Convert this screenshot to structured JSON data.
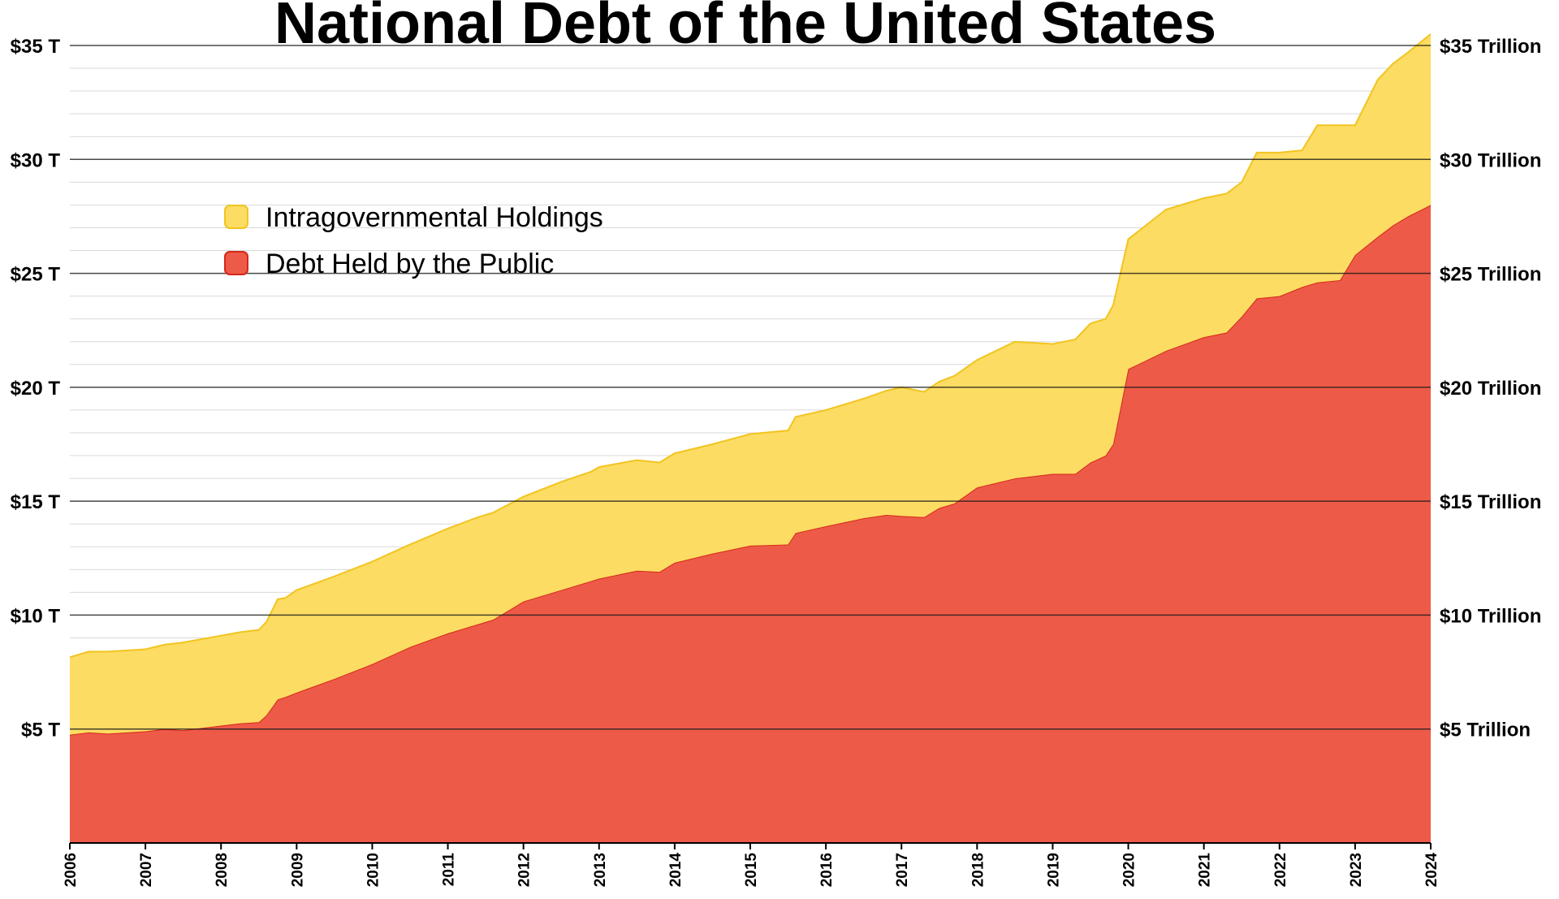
{
  "chart_data": {
    "type": "area",
    "stacked": true,
    "title": "National Debt of the United States",
    "xlabel": "",
    "ylabel": "",
    "xlim": [
      2006,
      2024
    ],
    "ylim": [
      0,
      35
    ],
    "unit": "trillion USD",
    "x_ticks": [
      "2006",
      "2007",
      "2008",
      "2009",
      "2010",
      "2011",
      "2012",
      "2013",
      "2014",
      "2015",
      "2016",
      "2017",
      "2018",
      "2019",
      "2020",
      "2021",
      "2022",
      "2023",
      "2024"
    ],
    "y_ticks_left": [
      {
        "value": 5,
        "label": "$5 T"
      },
      {
        "value": 10,
        "label": "$10 T"
      },
      {
        "value": 15,
        "label": "$15 T"
      },
      {
        "value": 20,
        "label": "$20 T"
      },
      {
        "value": 25,
        "label": "$25 T"
      },
      {
        "value": 30,
        "label": "$30 T"
      },
      {
        "value": 35,
        "label": "$35 T"
      }
    ],
    "y_ticks_right": [
      {
        "value": 5,
        "label": "$5 Trillion"
      },
      {
        "value": 10,
        "label": "$10 Trillion"
      },
      {
        "value": 15,
        "label": "$15 Trillion"
      },
      {
        "value": 20,
        "label": "$20 Trillion"
      },
      {
        "value": 25,
        "label": "$25 Trillion"
      },
      {
        "value": 30,
        "label": "$30 Trillion"
      },
      {
        "value": 35,
        "label": "$35 Trillion"
      }
    ],
    "minor_grid_step": 1,
    "grid": true,
    "legend_position": "top-left",
    "x": [
      2006.0,
      2006.25,
      2006.5,
      2007.0,
      2007.25,
      2007.5,
      2008.0,
      2008.25,
      2008.5,
      2008.6,
      2008.75,
      2008.85,
      2009.0,
      2009.5,
      2010.0,
      2010.5,
      2011.0,
      2011.4,
      2011.6,
      2012.0,
      2012.5,
      2012.9,
      2013.0,
      2013.5,
      2013.8,
      2014.0,
      2014.5,
      2015.0,
      2015.5,
      2015.6,
      2016.0,
      2016.5,
      2016.8,
      2017.0,
      2017.3,
      2017.5,
      2017.7,
      2018.0,
      2018.5,
      2019.0,
      2019.3,
      2019.5,
      2019.7,
      2019.8,
      2020.0,
      2020.5,
      2021.0,
      2021.3,
      2021.5,
      2021.7,
      2022.0,
      2022.3,
      2022.5,
      2022.8,
      2023.0,
      2023.3,
      2023.5,
      2023.7,
      2024.0
    ],
    "series": [
      {
        "name": "Debt Held by the Public",
        "color": "#ee5a48",
        "line_color": "#d4281a",
        "values": [
          4.75,
          4.85,
          4.8,
          4.9,
          5.0,
          4.95,
          5.15,
          5.25,
          5.3,
          5.6,
          6.3,
          6.4,
          6.6,
          7.2,
          7.85,
          8.6,
          9.2,
          9.6,
          9.8,
          10.6,
          11.1,
          11.5,
          11.6,
          11.95,
          11.9,
          12.3,
          12.7,
          13.05,
          13.1,
          13.6,
          13.9,
          14.25,
          14.4,
          14.35,
          14.3,
          14.7,
          14.9,
          15.6,
          16.0,
          16.2,
          16.2,
          16.7,
          17.0,
          17.5,
          20.8,
          21.6,
          22.2,
          22.4,
          23.1,
          23.9,
          24.0,
          24.4,
          24.6,
          24.7,
          25.8,
          26.6,
          27.1,
          27.5,
          28.0
        ]
      },
      {
        "name": "Intragovernmental Holdings",
        "color": "#fcdc62",
        "line_color": "#f2c420",
        "values": [
          3.4,
          3.55,
          3.6,
          3.6,
          3.7,
          3.85,
          3.95,
          4.0,
          4.05,
          4.1,
          4.4,
          4.35,
          4.5,
          4.5,
          4.5,
          4.5,
          4.6,
          4.7,
          4.7,
          4.6,
          4.75,
          4.8,
          4.9,
          4.85,
          4.8,
          4.8,
          4.8,
          4.9,
          5.0,
          5.1,
          5.1,
          5.25,
          5.45,
          5.65,
          5.5,
          5.55,
          5.6,
          5.6,
          6.0,
          5.7,
          5.9,
          6.1,
          6.0,
          6.1,
          5.7,
          6.2,
          6.1,
          6.1,
          5.9,
          6.4,
          6.3,
          6.0,
          6.9,
          6.8,
          5.7,
          6.9,
          7.1,
          7.2,
          7.5
        ]
      }
    ]
  },
  "legend": [
    {
      "label": "Intragovernmental Holdings",
      "color": "#fcdc62"
    },
    {
      "label": "Debt Held by the Public",
      "color": "#ee5a48"
    }
  ]
}
